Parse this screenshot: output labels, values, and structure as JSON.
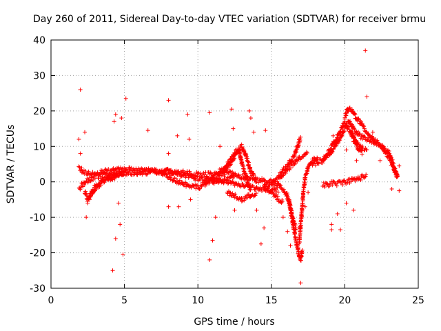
{
  "colors": {
    "series": "#ff0000",
    "grid": "#a0a0a0",
    "axis": "#000000"
  },
  "chart_data": {
    "type": "scatter",
    "title": "Day 260 of 2011, Sidereal Day-to-day VTEC variation (SDTVAR) for receiver brmu",
    "xlabel": "GPS time / hours",
    "ylabel": "SDTVAR / TECUs",
    "xlim": [
      0,
      25
    ],
    "ylim": [
      -30,
      40
    ],
    "xticks": [
      0,
      5,
      10,
      15,
      20,
      25
    ],
    "yticks": [
      -30,
      -20,
      -10,
      0,
      10,
      20,
      30,
      40
    ],
    "grid": true,
    "marker": "+",
    "series": [
      {
        "name": "SDTVAR",
        "description": "dense tracks",
        "tracks": [
          [
            [
              1.9,
              -2
            ],
            [
              2.2,
              -0.5
            ],
            [
              2.5,
              0.5
            ],
            [
              3.0,
              1.5
            ],
            [
              3.5,
              2
            ],
            [
              4.0,
              2.2
            ],
            [
              4.5,
              2.4
            ],
            [
              5.0,
              2.5
            ],
            [
              6.0,
              2.6
            ],
            [
              7.0,
              2.8
            ],
            [
              8.0,
              3
            ],
            [
              9.0,
              2
            ],
            [
              10.0,
              1
            ],
            [
              11.0,
              0.5
            ],
            [
              12.0,
              0
            ],
            [
              13.0,
              -1.2
            ],
            [
              14.0,
              -1.8
            ],
            [
              15.0,
              -2.2
            ],
            [
              15.5,
              -2.4
            ]
          ],
          [
            [
              1.9,
              4
            ],
            [
              2.2,
              3
            ],
            [
              2.5,
              2.5
            ],
            [
              3.0,
              2.6
            ],
            [
              4.0,
              3
            ],
            [
              5.0,
              3.5
            ],
            [
              6.0,
              3.2
            ],
            [
              7.0,
              3
            ],
            [
              8.0,
              2.8
            ],
            [
              9.0,
              2.5
            ],
            [
              10.0,
              2
            ],
            [
              11.0,
              2.2
            ],
            [
              12.0,
              2.5
            ],
            [
              13.0,
              1.5
            ],
            [
              14.0,
              0.5
            ],
            [
              15.0,
              0.2
            ]
          ],
          [
            [
              2.3,
              -3
            ],
            [
              2.5,
              -5
            ],
            [
              2.7,
              -4
            ],
            [
              3.0,
              -1.5
            ],
            [
              3.5,
              0.5
            ],
            [
              4.0,
              1.5
            ],
            [
              4.5,
              2
            ],
            [
              5.0,
              2.2
            ]
          ],
          [
            [
              2.6,
              -4
            ],
            [
              3.0,
              -2
            ],
            [
              3.5,
              0
            ],
            [
              4.0,
              1
            ],
            [
              4.5,
              1.5
            ]
          ],
          [
            [
              7.5,
              2.5
            ],
            [
              8.0,
              1.5
            ],
            [
              8.5,
              0.5
            ],
            [
              9.0,
              -0.5
            ],
            [
              9.5,
              -1
            ],
            [
              10.0,
              -1.5
            ],
            [
              10.5,
              -0.5
            ],
            [
              11.0,
              0
            ],
            [
              11.5,
              0.5
            ],
            [
              12.0,
              1
            ],
            [
              12.5,
              1.5
            ]
          ],
          [
            [
              10.5,
              0
            ],
            [
              11.0,
              1
            ],
            [
              11.5,
              2
            ],
            [
              12.0,
              4
            ],
            [
              12.5,
              7
            ],
            [
              12.8,
              9
            ],
            [
              13.0,
              5
            ],
            [
              13.3,
              1
            ],
            [
              13.6,
              -2
            ]
          ],
          [
            [
              11.5,
              3
            ],
            [
              12.0,
              5
            ],
            [
              12.5,
              8
            ],
            [
              13.0,
              10
            ],
            [
              13.3,
              7
            ],
            [
              13.6,
              3
            ],
            [
              14.0,
              0
            ]
          ],
          [
            [
              12.0,
              -3
            ],
            [
              12.5,
              -4
            ],
            [
              13.0,
              -5
            ],
            [
              13.5,
              -4
            ],
            [
              14.0,
              -3
            ]
          ],
          [
            [
              14.5,
              -2
            ],
            [
              15.0,
              -3
            ],
            [
              15.5,
              -5
            ],
            [
              15.8,
              -6
            ]
          ],
          [
            [
              14.5,
              -1
            ],
            [
              15.0,
              -0.5
            ],
            [
              15.5,
              1
            ],
            [
              16.0,
              3
            ],
            [
              16.5,
              5
            ],
            [
              17.0,
              7
            ],
            [
              17.5,
              8
            ]
          ],
          [
            [
              15.0,
              0
            ],
            [
              15.5,
              -1
            ],
            [
              16.0,
              -3
            ],
            [
              16.3,
              -7
            ],
            [
              16.5,
              -11
            ],
            [
              16.7,
              -13.5
            ]
          ],
          [
            [
              15.5,
              2
            ],
            [
              16.0,
              4
            ],
            [
              16.5,
              7
            ],
            [
              16.8,
              10
            ],
            [
              17.0,
              12.5
            ]
          ],
          [
            [
              16.2,
              -5
            ],
            [
              16.4,
              -10
            ],
            [
              16.6,
              -15
            ],
            [
              16.8,
              -19
            ],
            [
              16.9,
              -21
            ],
            [
              17.0,
              -22
            ],
            [
              17.1,
              -19
            ]
          ],
          [
            [
              16.9,
              -17
            ],
            [
              17.0,
              -12
            ],
            [
              17.1,
              -7
            ],
            [
              17.2,
              -2
            ],
            [
              17.3,
              1
            ],
            [
              17.5,
              4
            ],
            [
              17.8,
              6
            ],
            [
              18.2,
              7
            ]
          ],
          [
            [
              17.8,
              5
            ],
            [
              18.5,
              6
            ],
            [
              19.0,
              8
            ],
            [
              19.5,
              11
            ],
            [
              20.0,
              15
            ],
            [
              20.3,
              17
            ],
            [
              20.6,
              15
            ],
            [
              21.0,
              13
            ],
            [
              21.5,
              12
            ],
            [
              22.0,
              11
            ],
            [
              22.5,
              10
            ],
            [
              23.0,
              8
            ],
            [
              23.3,
              5
            ],
            [
              23.6,
              1
            ]
          ],
          [
            [
              18.5,
              6
            ],
            [
              19.0,
              9
            ],
            [
              19.5,
              13
            ],
            [
              20.0,
              16.5
            ],
            [
              20.3,
              15
            ],
            [
              20.6,
              12
            ],
            [
              21.0,
              9
            ],
            [
              21.2,
              8
            ]
          ],
          [
            [
              20.0,
              18
            ],
            [
              20.2,
              20.5
            ],
            [
              20.5,
              20
            ],
            [
              20.8,
              18
            ],
            [
              21.0,
              17
            ],
            [
              21.5,
              14
            ],
            [
              22.0,
              12
            ],
            [
              22.5,
              10
            ],
            [
              23.0,
              7
            ],
            [
              23.3,
              4
            ],
            [
              23.6,
              1
            ]
          ],
          [
            [
              18.5,
              -1
            ],
            [
              19.0,
              -0.5
            ],
            [
              19.5,
              -0.5
            ],
            [
              20.0,
              0
            ],
            [
              20.5,
              0.5
            ],
            [
              21.0,
              1
            ],
            [
              21.5,
              2
            ]
          ],
          [
            [
              20.4,
              14
            ],
            [
              20.8,
              11
            ],
            [
              21.2,
              9.5
            ],
            [
              21.5,
              9
            ]
          ]
        ],
        "outliers": [
          [
            2.0,
            26
          ],
          [
            1.9,
            12
          ],
          [
            2.3,
            14
          ],
          [
            2.0,
            8
          ],
          [
            2.4,
            -10
          ],
          [
            2.5,
            -6
          ],
          [
            4.2,
            -25
          ],
          [
            4.4,
            -16
          ],
          [
            4.7,
            -12
          ],
          [
            4.9,
            -20.5
          ],
          [
            4.3,
            17
          ],
          [
            4.4,
            19
          ],
          [
            4.8,
            18
          ],
          [
            5.1,
            23.5
          ],
          [
            4.6,
            -6
          ],
          [
            6.6,
            14.5
          ],
          [
            8.0,
            23
          ],
          [
            8.0,
            8
          ],
          [
            8.0,
            -7
          ],
          [
            8.6,
            13
          ],
          [
            8.7,
            -7
          ],
          [
            9.3,
            19
          ],
          [
            9.4,
            12
          ],
          [
            9.5,
            -5
          ],
          [
            10.8,
            19.5
          ],
          [
            10.8,
            -22
          ],
          [
            11.0,
            -16.5
          ],
          [
            11.2,
            -10
          ],
          [
            11.5,
            10
          ],
          [
            12.3,
            20.5
          ],
          [
            12.4,
            15
          ],
          [
            12.5,
            -8
          ],
          [
            13.5,
            20
          ],
          [
            13.6,
            18
          ],
          [
            13.8,
            14
          ],
          [
            14.6,
            14.5
          ],
          [
            14.3,
            -17.5
          ],
          [
            14.5,
            -13
          ],
          [
            14.0,
            -8
          ],
          [
            15.8,
            -10
          ],
          [
            16.1,
            -14
          ],
          [
            16.3,
            -18
          ],
          [
            17.0,
            -28.5
          ],
          [
            17.3,
            -7
          ],
          [
            17.5,
            -3
          ],
          [
            19.1,
            -12
          ],
          [
            19.1,
            -13.5
          ],
          [
            19.7,
            -13.5
          ],
          [
            19.5,
            -9
          ],
          [
            20.1,
            -6
          ],
          [
            20.6,
            -8
          ],
          [
            21.4,
            37
          ],
          [
            21.5,
            24
          ],
          [
            21.5,
            9
          ],
          [
            22.4,
            6
          ],
          [
            23.2,
            -2
          ],
          [
            23.7,
            -2.5
          ],
          [
            23.7,
            4.5
          ],
          [
            19.2,
            13
          ],
          [
            20.1,
            9
          ],
          [
            20.8,
            6
          ],
          [
            21.9,
            14
          ]
        ]
      }
    ]
  }
}
